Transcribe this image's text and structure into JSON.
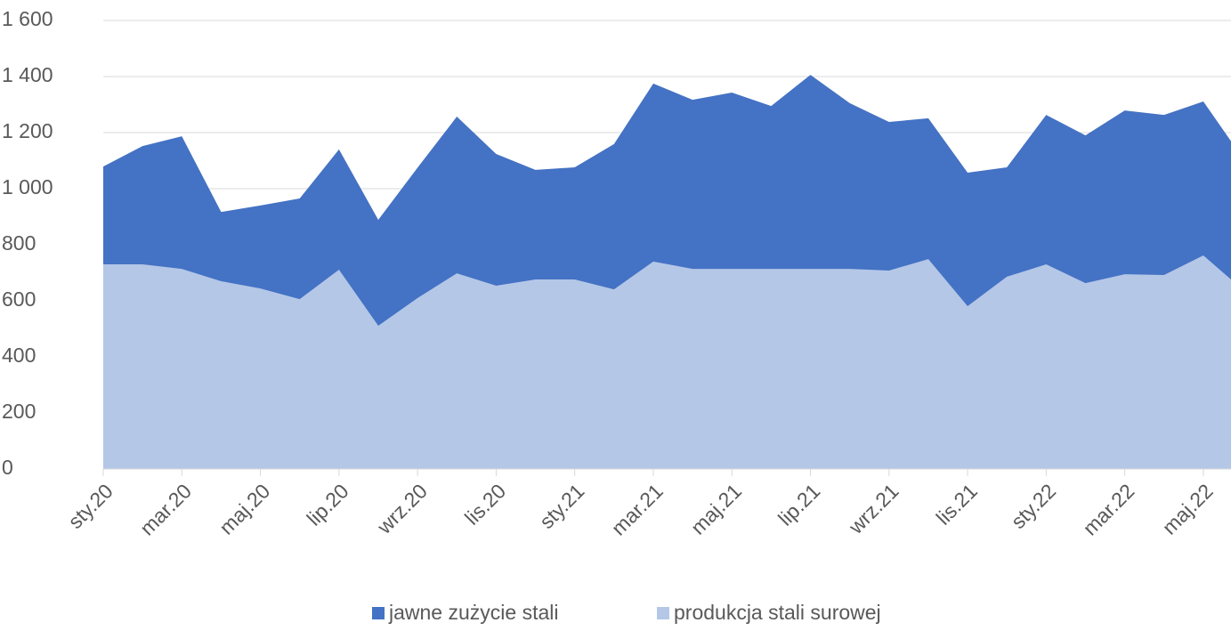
{
  "chart_data": {
    "type": "area",
    "categories": [
      "sty.20",
      null,
      "mar.20",
      null,
      "maj.20",
      null,
      "lip.20",
      null,
      "wrz.20",
      null,
      "lis.20",
      null,
      "sty.21",
      null,
      "mar.21",
      null,
      "maj.21",
      null,
      "lip.21",
      null,
      "wrz.21",
      null,
      "lis.21",
      null,
      "sty.22",
      null,
      "mar.22",
      null,
      "maj.22",
      null
    ],
    "series": [
      {
        "name": "jawne zużycie stali",
        "color": "#4472c4",
        "values": [
          1079,
          1152,
          1187,
          917,
          940,
          965,
          1140,
          889,
          1075,
          1257,
          1124,
          1067,
          1076,
          1159,
          1375,
          1317,
          1343,
          1295,
          1406,
          1305,
          1238,
          1251,
          1057,
          1076,
          1263,
          1190,
          1279,
          1263,
          1311,
          1110
        ]
      },
      {
        "name": "produkcja stali surowej",
        "color": "#b4c7e7",
        "values": [
          730,
          730,
          714,
          670,
          644,
          606,
          711,
          511,
          610,
          698,
          654,
          676,
          676,
          641,
          740,
          714,
          714,
          714,
          714,
          714,
          708,
          749,
          581,
          686,
          730,
          663,
          695,
          692,
          762,
          640
        ]
      }
    ],
    "ylim": [
      0,
      1600
    ],
    "yticks": [
      0,
      200,
      400,
      600,
      800,
      {
        "value": 1000,
        "label": "1 000"
      },
      {
        "value": 1200,
        "label": "1 200"
      },
      {
        "value": 1400,
        "label": "1 400"
      },
      {
        "value": 1600,
        "label": "1 600"
      }
    ],
    "grid": true,
    "legend": "bottom"
  }
}
